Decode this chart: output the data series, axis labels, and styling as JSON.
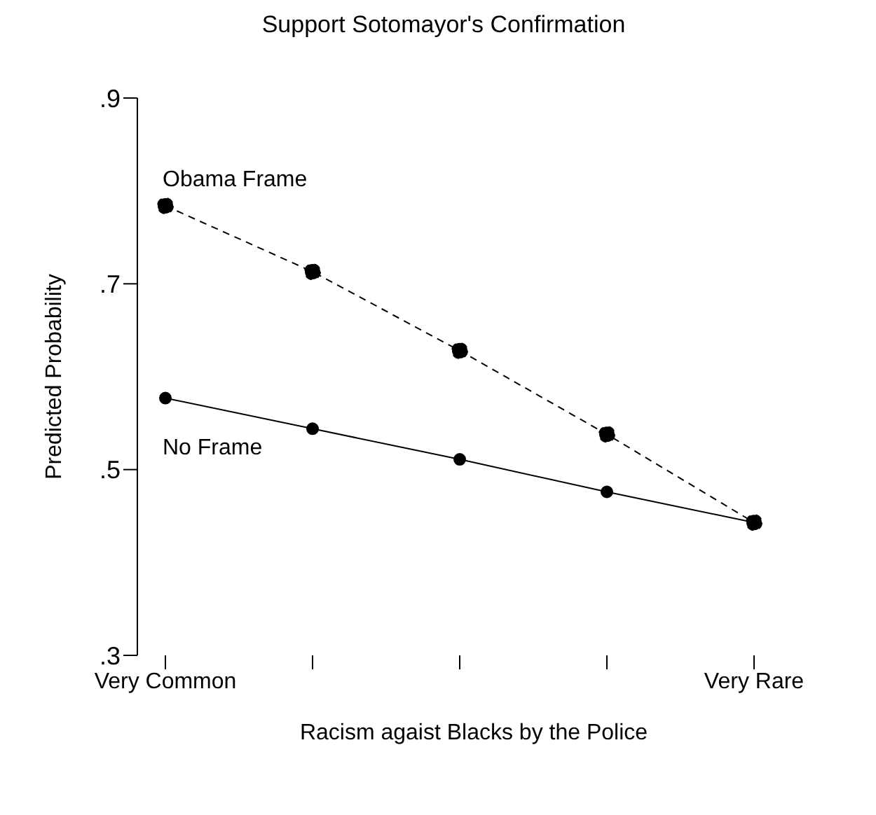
{
  "chart_data": {
    "type": "line",
    "title": "Support Sotomayor's Confirmation",
    "xlabel": "Racism agaist Blacks by the Police",
    "ylabel": "Predicted Probability",
    "categories": [
      "Very Common",
      null,
      null,
      null,
      "Very Rare"
    ],
    "series": [
      {
        "name": "Obama Frame",
        "color": "#000000",
        "line_style": "dashed",
        "values": [
          0.784,
          0.713,
          0.628,
          0.538,
          0.443
        ]
      },
      {
        "name": "No Frame",
        "color": "#000000",
        "line_style": "solid",
        "values": [
          0.577,
          0.544,
          0.511,
          0.476,
          0.443
        ]
      }
    ],
    "ylim": [
      0.3,
      0.9
    ],
    "yticks": [
      {
        "value": 0.3,
        "label": ".3"
      },
      {
        "value": 0.5,
        "label": ".5"
      },
      {
        "value": 0.7,
        "label": ".7"
      },
      {
        "value": 0.9,
        "label": ".9"
      }
    ],
    "marker": "circle",
    "grid": false,
    "legend": false
  }
}
